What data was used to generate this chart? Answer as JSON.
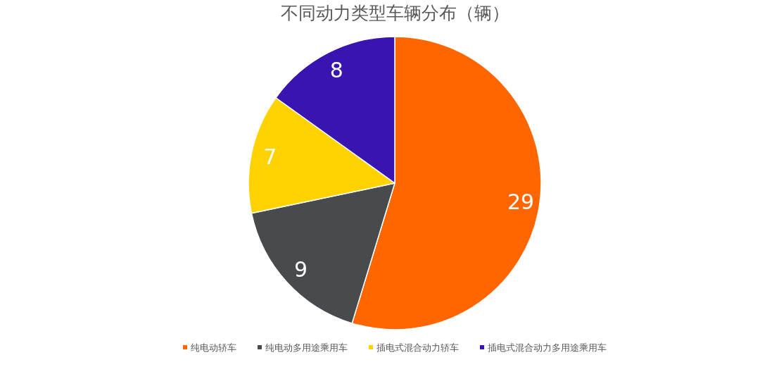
{
  "chart_data": {
    "type": "pie",
    "title": "不同动力类型车辆分布（辆）",
    "categories": [
      "纯电动轿车",
      "纯电动多用途乘用车",
      "插电式混合动力轿车",
      "插电式混合动力多用途乘用车"
    ],
    "values": [
      29,
      9,
      7,
      8
    ],
    "colors": [
      "#ff6600",
      "#474b4e",
      "#ffd200",
      "#3814b0"
    ],
    "data_labels": true,
    "legend": "bottom"
  }
}
